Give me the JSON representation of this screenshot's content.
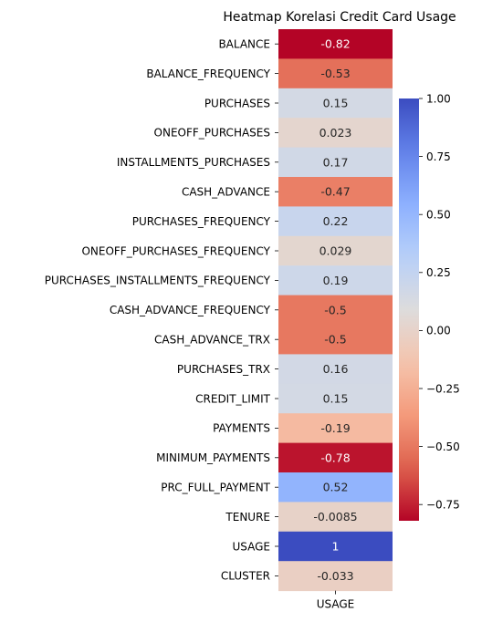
{
  "chart_data": {
    "type": "heatmap",
    "title": "Heatmap Korelasi Credit Card Usage",
    "columns": [
      "USAGE"
    ],
    "rows": [
      "BALANCE",
      "BALANCE_FREQUENCY",
      "PURCHASES",
      "ONEOFF_PURCHASES",
      "INSTALLMENTS_PURCHASES",
      "CASH_ADVANCE",
      "PURCHASES_FREQUENCY",
      "ONEOFF_PURCHASES_FREQUENCY",
      "PURCHASES_INSTALLMENTS_FREQUENCY",
      "CASH_ADVANCE_FREQUENCY",
      "CASH_ADVANCE_TRX",
      "PURCHASES_TRX",
      "CREDIT_LIMIT",
      "PAYMENTS",
      "MINIMUM_PAYMENTS",
      "PRC_FULL_PAYMENT",
      "TENURE",
      "USAGE",
      "CLUSTER"
    ],
    "values": [
      -0.82,
      -0.53,
      0.15,
      0.023,
      0.17,
      -0.47,
      0.22,
      0.029,
      0.19,
      -0.5,
      -0.5,
      0.16,
      0.15,
      -0.19,
      -0.78,
      0.52,
      -0.0085,
      1,
      -0.033
    ],
    "labels": [
      "-0.82",
      "-0.53",
      "0.15",
      "0.023",
      "0.17",
      "-0.47",
      "0.22",
      "0.029",
      "0.19",
      "-0.5",
      "-0.5",
      "0.16",
      "0.15",
      "-0.19",
      "-0.78",
      "0.52",
      "-0.0085",
      "1",
      "-0.033"
    ],
    "colormap": "coolwarm",
    "colorbar": {
      "vmin": -0.82,
      "vmax": 1.0,
      "ticks": [
        1.0,
        0.75,
        0.5,
        0.25,
        0.0,
        -0.25,
        -0.5,
        -0.75
      ],
      "tick_labels": [
        "1.00",
        "0.75",
        "0.50",
        "0.25",
        "0.00",
        "−0.25",
        "−0.50",
        "−0.75"
      ]
    },
    "colors": {
      "low": "#b40426",
      "mid": "#dddcdc",
      "high": "#3b4cc0"
    }
  }
}
